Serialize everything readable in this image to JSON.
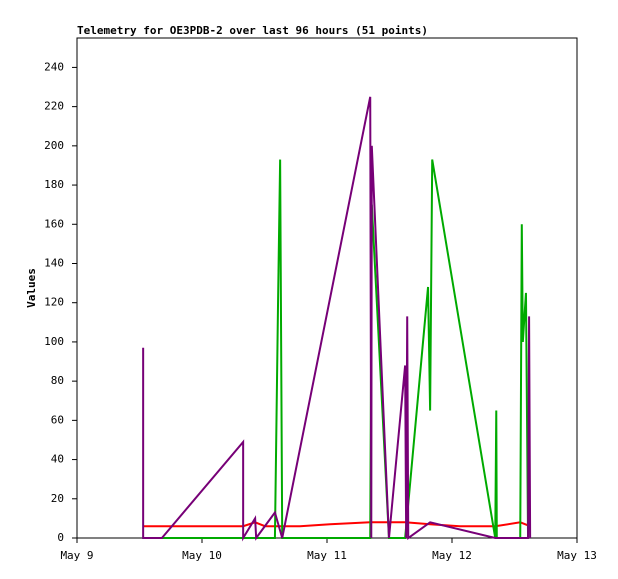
{
  "chart_data": {
    "type": "line",
    "title": "Telemetry for OE3PDB-2 over last 96 hours (51 points)",
    "y_label": "Values",
    "xlim": [
      0,
      96
    ],
    "xticks": [
      {
        "value": 0,
        "label": "May 9"
      },
      {
        "value": 24,
        "label": "May 10"
      },
      {
        "value": 48,
        "label": "May 11"
      },
      {
        "value": 72,
        "label": "May 12"
      },
      {
        "value": 96,
        "label": "May 13"
      }
    ],
    "ylim": [
      0,
      255
    ],
    "yticks": [
      0,
      20,
      40,
      60,
      80,
      100,
      120,
      140,
      160,
      180,
      200,
      220,
      240
    ],
    "grid": false,
    "series": [
      {
        "color": "#ff0000",
        "x": [
          12.7,
          31.9,
          34.2,
          36.1,
          42.8,
          48.6,
          56.3,
          63.0,
          67.8,
          73.5,
          80.3,
          85.1,
          87.0
        ],
        "values": [
          6,
          6,
          8,
          6,
          6,
          7,
          8,
          8,
          7,
          6,
          6,
          8,
          6
        ]
      },
      {
        "color": "#00aa00",
        "x": [
          12.7,
          38.0,
          38.6,
          39.0,
          39.4,
          56.3,
          56.6,
          59.9,
          63.0,
          67.4,
          67.8,
          68.2,
          80.3,
          80.5,
          80.6,
          85.1,
          85.4,
          85.6,
          86.2,
          86.6
        ],
        "values": [
          0,
          0,
          120,
          193,
          0,
          0,
          170,
          0,
          0,
          128,
          65,
          193,
          0,
          65,
          0,
          0,
          160,
          100,
          125,
          0
        ]
      },
      {
        "color": "#770077",
        "x": [
          12.7,
          12.7,
          16.3,
          31.9,
          31.9,
          34.2,
          34.4,
          38.0,
          39.4,
          56.3,
          56.5,
          56.6,
          59.9,
          63.0,
          63.2,
          63.4,
          63.6,
          67.8,
          80.3,
          86.6,
          86.8,
          87.0
        ],
        "values": [
          97,
          0,
          0,
          49,
          0,
          10,
          0,
          13,
          0,
          225,
          0,
          200,
          0,
          88,
          0,
          113,
          0,
          8,
          0,
          0,
          113,
          0
        ]
      }
    ]
  }
}
